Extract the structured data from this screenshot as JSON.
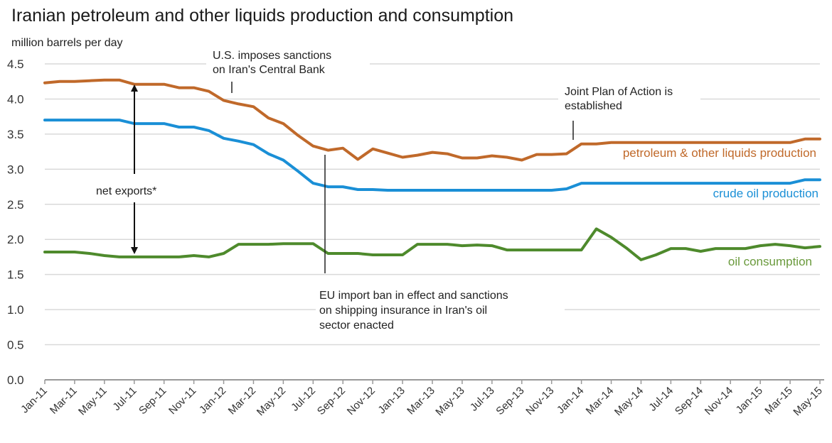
{
  "chart_data": {
    "type": "line",
    "title": "Iranian petroleum and other liquids production and consumption",
    "ylabel": "million barrels per day",
    "xlabel": "",
    "ylim": [
      0,
      4.5
    ],
    "yticks": [
      "0.0",
      "0.5",
      "1.0",
      "1.5",
      "2.0",
      "2.5",
      "3.0",
      "3.5",
      "4.0",
      "4.5"
    ],
    "grid": true,
    "x": [
      "Jan-11",
      "Feb-11",
      "Mar-11",
      "Apr-11",
      "May-11",
      "Jun-11",
      "Jul-11",
      "Aug-11",
      "Sep-11",
      "Oct-11",
      "Nov-11",
      "Dec-11",
      "Jan-12",
      "Feb-12",
      "Mar-12",
      "Apr-12",
      "May-12",
      "Jun-12",
      "Jul-12",
      "Aug-12",
      "Sep-12",
      "Oct-12",
      "Nov-12",
      "Dec-12",
      "Jan-13",
      "Feb-13",
      "Mar-13",
      "Apr-13",
      "May-13",
      "Jun-13",
      "Jul-13",
      "Aug-13",
      "Sep-13",
      "Oct-13",
      "Nov-13",
      "Dec-13",
      "Jan-14",
      "Feb-14",
      "Mar-14",
      "Apr-14",
      "May-14",
      "Jun-14",
      "Jul-14",
      "Aug-14",
      "Sep-14",
      "Oct-14",
      "Nov-14",
      "Dec-14",
      "Jan-15",
      "Feb-15",
      "Mar-15",
      "Apr-15",
      "May-15"
    ],
    "xtick_labels": [
      "Jan-11",
      "Mar-11",
      "May-11",
      "Jul-11",
      "Sep-11",
      "Nov-11",
      "Jan-12",
      "Mar-12",
      "May-12",
      "Jul-12",
      "Sep-12",
      "Nov-12",
      "Jan-13",
      "Mar-13",
      "May-13",
      "Jul-13",
      "Sep-13",
      "Nov-13",
      "Jan-14",
      "Mar-14",
      "May-14",
      "Jul-14",
      "Sep-14",
      "Nov-14",
      "Jan-15",
      "Mar-15",
      "May-15"
    ],
    "series": [
      {
        "name": "petroleum & other liquids production",
        "color": "#c0692a",
        "values": [
          4.23,
          4.25,
          4.25,
          4.26,
          4.27,
          4.27,
          4.21,
          4.21,
          4.21,
          4.16,
          4.16,
          4.11,
          3.98,
          3.93,
          3.89,
          3.73,
          3.65,
          3.48,
          3.33,
          3.27,
          3.3,
          3.14,
          3.29,
          3.23,
          3.17,
          3.2,
          3.24,
          3.22,
          3.16,
          3.16,
          3.19,
          3.17,
          3.13,
          3.21,
          3.21,
          3.22,
          3.36,
          3.36,
          3.38,
          3.38,
          3.38,
          3.38,
          3.38,
          3.38,
          3.38,
          3.38,
          3.38,
          3.38,
          3.38,
          3.38,
          3.38,
          3.43,
          3.43
        ]
      },
      {
        "name": "crude oil production",
        "color": "#1a8fd6",
        "values": [
          3.7,
          3.7,
          3.7,
          3.7,
          3.7,
          3.7,
          3.65,
          3.65,
          3.65,
          3.6,
          3.6,
          3.55,
          3.44,
          3.4,
          3.35,
          3.22,
          3.13,
          2.97,
          2.8,
          2.75,
          2.75,
          2.71,
          2.71,
          2.7,
          2.7,
          2.7,
          2.7,
          2.7,
          2.7,
          2.7,
          2.7,
          2.7,
          2.7,
          2.7,
          2.7,
          2.72,
          2.8,
          2.8,
          2.8,
          2.8,
          2.8,
          2.8,
          2.8,
          2.8,
          2.8,
          2.8,
          2.8,
          2.8,
          2.8,
          2.8,
          2.8,
          2.85,
          2.85
        ]
      },
      {
        "name": "oil consumption",
        "color": "#4e8a2c",
        "values": [
          1.82,
          1.82,
          1.82,
          1.8,
          1.77,
          1.75,
          1.75,
          1.75,
          1.75,
          1.75,
          1.77,
          1.75,
          1.8,
          1.93,
          1.93,
          1.93,
          1.94,
          1.94,
          1.94,
          1.8,
          1.8,
          1.8,
          1.78,
          1.78,
          1.78,
          1.93,
          1.93,
          1.93,
          1.91,
          1.92,
          1.91,
          1.85,
          1.85,
          1.85,
          1.85,
          1.85,
          1.85,
          2.15,
          2.03,
          1.88,
          1.71,
          1.78,
          1.87,
          1.87,
          1.83,
          1.87,
          1.87,
          1.87,
          1.91,
          1.93,
          1.91,
          1.88,
          1.9
        ]
      }
    ],
    "series_labels": {
      "petroleum": "petroleum & other liquids production",
      "crude": "crude oil production",
      "consumption": "oil consumption"
    },
    "annotations": {
      "us_sanctions": [
        "U.S. imposes sanctions",
        "on Iran's Central Bank"
      ],
      "joint_plan": [
        "Joint Plan of Action is",
        "established"
      ],
      "eu_ban": [
        "EU import ban in effect and sanctions",
        "on shipping insurance in Iran's oil",
        "sector enacted"
      ],
      "net_exports": "net exports*"
    },
    "annotation_dates": {
      "us_sanctions": "Jan-12",
      "eu_ban": "Jul-12",
      "joint_plan": "Jan-14",
      "net_exports": "Jul-11"
    },
    "legend": "inline-labels"
  }
}
